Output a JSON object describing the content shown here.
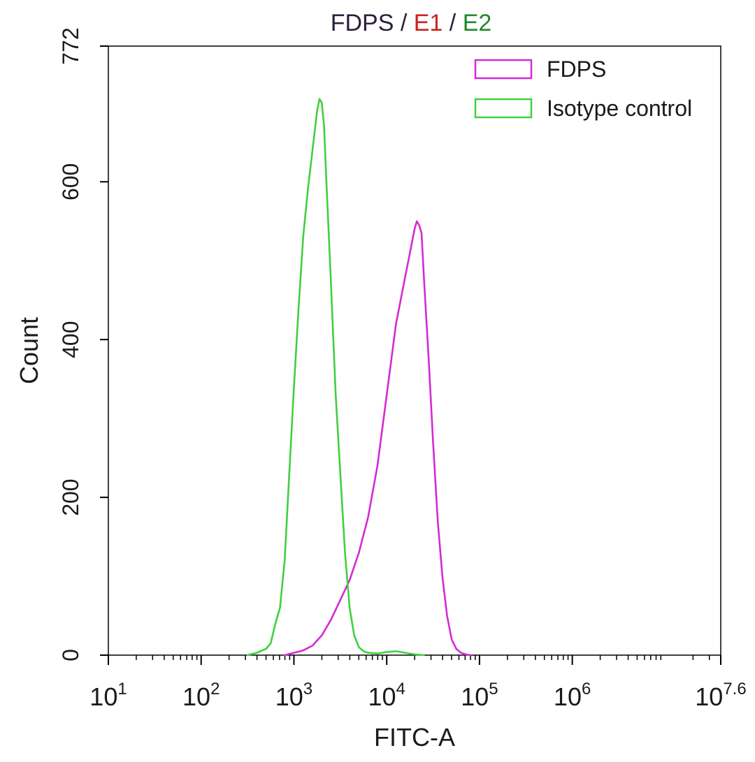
{
  "chart_data": {
    "type": "line",
    "title": [
      {
        "text": "FDPS",
        "color": "#2b1f3a"
      },
      {
        "text": " / ",
        "color": "#2b1f3a"
      },
      {
        "text": "E1",
        "color": "#cc2222"
      },
      {
        "text": " / ",
        "color": "#2b1f3a"
      },
      {
        "text": "E2",
        "color": "#1f8a2a"
      }
    ],
    "xlabel": "FITC-A",
    "ylabel": "Count",
    "x_scale": "log",
    "xlim": [
      10,
      39810717
    ],
    "ylim": [
      0,
      772
    ],
    "x_ticks": [
      {
        "value": 10,
        "base": "10",
        "exp": "1"
      },
      {
        "value": 100,
        "base": "10",
        "exp": "2"
      },
      {
        "value": 1000,
        "base": "10",
        "exp": "3"
      },
      {
        "value": 10000,
        "base": "10",
        "exp": "4"
      },
      {
        "value": 100000,
        "base": "10",
        "exp": "5"
      },
      {
        "value": 1000000,
        "base": "10",
        "exp": "6"
      },
      {
        "value": 39810717,
        "base": "10",
        "exp": "7.6"
      }
    ],
    "y_ticks": [
      {
        "value": 0,
        "label": "0"
      },
      {
        "value": 200,
        "label": "200"
      },
      {
        "value": 400,
        "label": "400"
      },
      {
        "value": 600,
        "label": "600"
      },
      {
        "value": 772,
        "label": "772"
      }
    ],
    "legend_position": "top-right",
    "series": [
      {
        "name": "FDPS",
        "color": "#d42bd4",
        "x": [
          794,
          1000,
          1259,
          1585,
          1995,
          2512,
          3162,
          3981,
          5012,
          6310,
          7943,
          10000,
          12589,
          15849,
          17783,
          19953,
          21135,
          22387,
          23714,
          25119,
          28184,
          31623,
          35481,
          39811,
          44668,
          50119,
          56234,
          63096,
          70795,
          79433
        ],
        "y": [
          0,
          3,
          6,
          12,
          25,
          45,
          70,
          95,
          130,
          175,
          240,
          330,
          420,
          480,
          510,
          540,
          550,
          545,
          535,
          480,
          380,
          270,
          170,
          100,
          50,
          20,
          8,
          3,
          1,
          0
        ]
      },
      {
        "name": "Isotype control",
        "color": "#3fd13f",
        "x": [
          316,
          398,
          501,
          562,
          631,
          708,
          794,
          891,
          1000,
          1122,
          1259,
          1413,
          1585,
          1778,
          1884,
          1995,
          2113,
          2239,
          2512,
          2818,
          3162,
          3548,
          3981,
          4467,
          5012,
          5623,
          6310,
          7943,
          10000,
          12589,
          15849,
          19953,
          25119
        ],
        "y": [
          0,
          3,
          8,
          15,
          40,
          60,
          120,
          230,
          340,
          440,
          530,
          590,
          640,
          690,
          705,
          700,
          670,
          600,
          470,
          330,
          230,
          130,
          60,
          25,
          10,
          5,
          3,
          2,
          4,
          5,
          3,
          1,
          0
        ]
      }
    ]
  }
}
